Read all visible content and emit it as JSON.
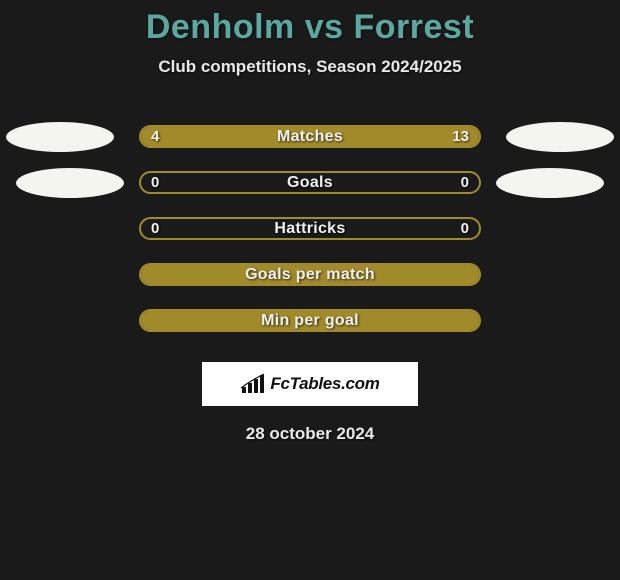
{
  "title": "Denholm vs Forrest",
  "subtitle": "Club competitions, Season 2024/2025",
  "brand": "FcTables.com",
  "date": "28 october 2024",
  "colors": {
    "background": "#1a1a1a",
    "title_color": "#5ca8a0",
    "bar_color": "#a08a2a",
    "text_color": "#e8e8e8",
    "ellipse_color": "#f5f5f0"
  },
  "bars": [
    {
      "label": "Matches",
      "left_val": "4",
      "right_val": "13",
      "left_pct": 23.5,
      "right_pct": 76.5,
      "show_left_ellipse": true,
      "show_right_ellipse": true,
      "full": true
    },
    {
      "label": "Goals",
      "left_val": "0",
      "right_val": "0",
      "left_pct": 0,
      "right_pct": 0,
      "show_left_ellipse": true,
      "show_right_ellipse": true,
      "full": false
    },
    {
      "label": "Hattricks",
      "left_val": "0",
      "right_val": "0",
      "left_pct": 0,
      "right_pct": 0,
      "show_left_ellipse": false,
      "show_right_ellipse": false,
      "full": false
    },
    {
      "label": "Goals per match",
      "left_val": "",
      "right_val": "",
      "left_pct": 100,
      "right_pct": 0,
      "show_left_ellipse": false,
      "show_right_ellipse": false,
      "full": true
    },
    {
      "label": "Min per goal",
      "left_val": "",
      "right_val": "",
      "left_pct": 100,
      "right_pct": 0,
      "show_left_ellipse": false,
      "show_right_ellipse": false,
      "full": true
    }
  ]
}
